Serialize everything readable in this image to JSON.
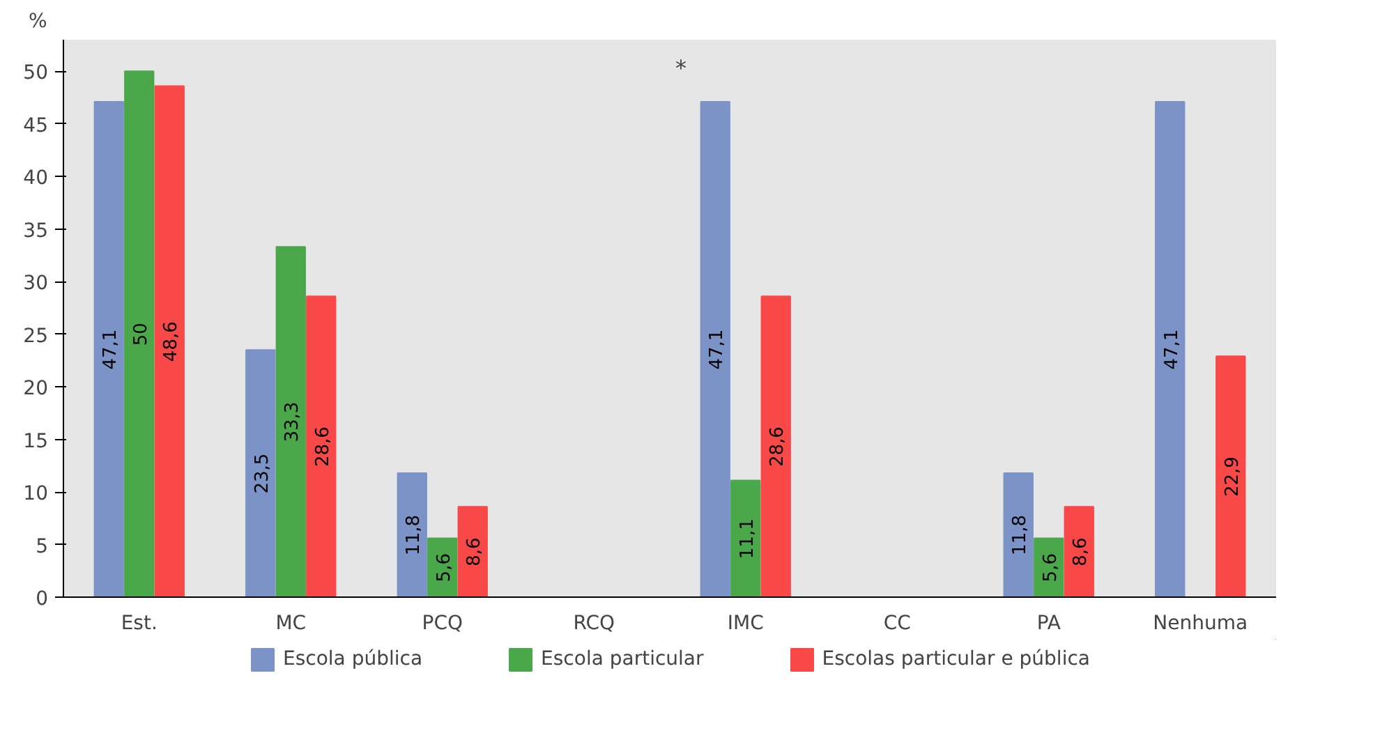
{
  "chart_data": {
    "type": "bar",
    "ylabel": "%",
    "categories": [
      "Est.",
      "MC",
      "PCQ",
      "RCQ",
      "IMC",
      "CC",
      "PA",
      "Nenhuma"
    ],
    "series": [
      {
        "name": "Escola pública",
        "color": "#7b93c6",
        "values": [
          47.1,
          23.5,
          11.8,
          0,
          47.1,
          0,
          11.8,
          47.1
        ],
        "value_labels": [
          "47,1",
          "23,5",
          "11,8",
          null,
          "47,1",
          null,
          "11,8",
          "47,1"
        ]
      },
      {
        "name": "Escola particular",
        "color": "#4aa84a",
        "values": [
          50,
          33.3,
          5.6,
          0,
          11.1,
          0,
          5.6,
          0
        ],
        "value_labels": [
          "50",
          "33,3",
          "5,6",
          null,
          "11,1",
          null,
          "5,6",
          null
        ]
      },
      {
        "name": "Escolas particular e pública",
        "color": "#f84848",
        "values": [
          48.6,
          28.6,
          8.6,
          0,
          28.6,
          0,
          8.6,
          22.9
        ],
        "value_labels": [
          "48,6",
          "28,6",
          "8,6",
          null,
          "28,6",
          null,
          "8,6",
          "22,9"
        ]
      }
    ],
    "ylim": [
      0,
      53
    ],
    "yticks": [
      0,
      5,
      10,
      15,
      20,
      25,
      30,
      35,
      40,
      45,
      50
    ],
    "legend": "bottom",
    "annotations": [
      "*"
    ]
  }
}
